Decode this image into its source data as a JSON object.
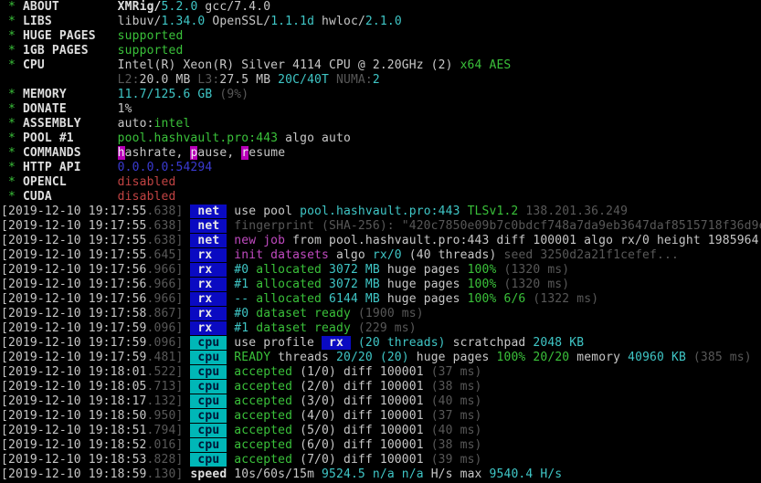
{
  "palette": {
    "background": "#000000",
    "foreground": "#c7c7c7",
    "green": "#3ac13a",
    "cyan": "#3fc6c6",
    "magenta": "#c04ac0",
    "gray": "#585858",
    "blue": "#3a3ad1",
    "red": "#c24343",
    "tag_net_bg": "#0a0ac2",
    "tag_cpu_bg": "#00b7b7",
    "command_hotkey_bg": "#b800b8"
  },
  "terminal": {
    "app": "XMRig miner console output",
    "lines": [
      {
        "name": "info-line-about",
        "seg": [
          [
            "g",
            " * "
          ],
          [
            "wb",
            "ABOUT"
          ],
          [
            "w",
            "        "
          ],
          [
            "wb",
            "XMRig/"
          ],
          [
            "c",
            "5.2.0"
          ],
          [
            "w",
            " gcc/7.4.0"
          ]
        ]
      },
      {
        "name": "info-line-libs",
        "seg": [
          [
            "g",
            " * "
          ],
          [
            "wb",
            "LIBS"
          ],
          [
            "w",
            "         "
          ],
          [
            "w",
            "libuv/"
          ],
          [
            "c",
            "1.34.0"
          ],
          [
            "w",
            " OpenSSL/"
          ],
          [
            "c",
            "1.1.1d"
          ],
          [
            "w",
            " hwloc/"
          ],
          [
            "c",
            "2.1.0"
          ]
        ]
      },
      {
        "name": "info-line-huge-pages",
        "seg": [
          [
            "g",
            " * "
          ],
          [
            "wb",
            "HUGE PAGES"
          ],
          [
            "w",
            "   "
          ],
          [
            "g",
            "supported"
          ]
        ]
      },
      {
        "name": "info-line-1gb-pages",
        "seg": [
          [
            "g",
            " * "
          ],
          [
            "wb",
            "1GB PAGES"
          ],
          [
            "w",
            "    "
          ],
          [
            "g",
            "supported"
          ]
        ]
      },
      {
        "name": "info-line-cpu",
        "seg": [
          [
            "g",
            " * "
          ],
          [
            "wb",
            "CPU"
          ],
          [
            "w",
            "          "
          ],
          [
            "w",
            "Intel(R) Xeon(R) Silver 4114 CPU @ 2.20GHz (2) "
          ],
          [
            "g",
            "x64 AES"
          ]
        ]
      },
      {
        "name": "info-line-cpu-cache",
        "seg": [
          [
            "w",
            "                "
          ],
          [
            "gy",
            "L2:"
          ],
          [
            "w",
            "20.0 MB "
          ],
          [
            "gy",
            "L3:"
          ],
          [
            "w",
            "27.5 MB "
          ],
          [
            "c",
            "20C/40T "
          ],
          [
            "gy",
            "NUMA:"
          ],
          [
            "c",
            "2"
          ]
        ]
      },
      {
        "name": "info-line-memory",
        "seg": [
          [
            "g",
            " * "
          ],
          [
            "wb",
            "MEMORY"
          ],
          [
            "w",
            "       "
          ],
          [
            "c",
            "11.7/125.6 GB "
          ],
          [
            "gy",
            "(9%)"
          ]
        ]
      },
      {
        "name": "info-line-donate",
        "seg": [
          [
            "g",
            " * "
          ],
          [
            "wb",
            "DONATE"
          ],
          [
            "w",
            "       "
          ],
          [
            "w",
            "1%"
          ]
        ]
      },
      {
        "name": "info-line-assembly",
        "seg": [
          [
            "g",
            " * "
          ],
          [
            "wb",
            "ASSEMBLY"
          ],
          [
            "w",
            "     "
          ],
          [
            "w",
            "auto:"
          ],
          [
            "g",
            "intel"
          ]
        ]
      },
      {
        "name": "info-line-pool-1",
        "seg": [
          [
            "g",
            " * "
          ],
          [
            "wb",
            "POOL #1"
          ],
          [
            "w",
            "      "
          ],
          [
            "g",
            "pool.hashvault.pro:443"
          ],
          [
            "w",
            " algo auto"
          ]
        ]
      },
      {
        "name": "info-line-commands",
        "seg": [
          [
            "g",
            " * "
          ],
          [
            "wb",
            "COMMANDS"
          ],
          [
            "w",
            "     "
          ],
          [
            "hot",
            "h"
          ],
          [
            "w",
            "ashrate, "
          ],
          [
            "hot",
            "p"
          ],
          [
            "w",
            "ause, "
          ],
          [
            "hot",
            "r"
          ],
          [
            "w",
            "esume"
          ]
        ]
      },
      {
        "name": "info-line-http-api",
        "seg": [
          [
            "g",
            " * "
          ],
          [
            "wb",
            "HTTP API"
          ],
          [
            "w",
            "     "
          ],
          [
            "bl",
            "0.0.0.0:54294"
          ]
        ]
      },
      {
        "name": "info-line-opencl",
        "seg": [
          [
            "g",
            " * "
          ],
          [
            "wb",
            "OPENCL"
          ],
          [
            "w",
            "       "
          ],
          [
            "r",
            "disabled"
          ]
        ]
      },
      {
        "name": "info-line-cuda",
        "seg": [
          [
            "g",
            " * "
          ],
          [
            "wb",
            "CUDA"
          ],
          [
            "w",
            "         "
          ],
          [
            "r",
            "disabled"
          ]
        ]
      },
      {
        "name": "log-line-net-use-pool",
        "seg": [
          [
            "w",
            "[2019-12-10 19:17:55"
          ],
          [
            "gy",
            ".638] "
          ],
          [
            "tagnet",
            " net "
          ],
          [
            "w",
            " use pool "
          ],
          [
            "c",
            "pool.hashvault.pro:443 "
          ],
          [
            "g",
            "TLSv1.2 "
          ],
          [
            "gy",
            "138.201.36.249"
          ]
        ]
      },
      {
        "name": "log-line-net-fingerprint",
        "seg": [
          [
            "w",
            "[2019-12-10 19:17:55"
          ],
          [
            "gy",
            ".638] "
          ],
          [
            "tagnet",
            " net "
          ],
          [
            "gy",
            " fingerprint (SHA-256): \"420c7850e09b7c0bdcf748a7da9eb3647daf8515718f36d9e"
          ]
        ]
      },
      {
        "name": "log-line-net-new-job",
        "seg": [
          [
            "w",
            "[2019-12-10 19:17:55"
          ],
          [
            "gy",
            ".638] "
          ],
          [
            "tagnet",
            " net "
          ],
          [
            "w",
            " "
          ],
          [
            "m",
            "new job"
          ],
          [
            "w",
            " from pool.hashvault.pro:443 diff 100001 algo rx/0 height 1985964"
          ]
        ]
      },
      {
        "name": "log-line-rx-init-datasets",
        "seg": [
          [
            "w",
            "[2019-12-10 19:17:55"
          ],
          [
            "gy",
            ".645] "
          ],
          [
            "tagnet",
            " rx  "
          ],
          [
            "w",
            " "
          ],
          [
            "m",
            "init datasets"
          ],
          [
            "w",
            " algo "
          ],
          [
            "c",
            "rx/0"
          ],
          [
            "w",
            " (40 threads) "
          ],
          [
            "gy",
            "seed 3250d2a21f1cefef..."
          ]
        ]
      },
      {
        "name": "log-line-rx-allocated-0",
        "seg": [
          [
            "w",
            "[2019-12-10 19:17:56"
          ],
          [
            "gy",
            ".966] "
          ],
          [
            "tagnet",
            " rx  "
          ],
          [
            "w",
            " "
          ],
          [
            "c",
            "#0 "
          ],
          [
            "g",
            "allocated"
          ],
          [
            "c",
            " 3072 MB "
          ],
          [
            "w",
            "huge pages "
          ],
          [
            "g",
            "100% "
          ],
          [
            "gy",
            "(1320 ms)"
          ]
        ]
      },
      {
        "name": "log-line-rx-allocated-1",
        "seg": [
          [
            "w",
            "[2019-12-10 19:17:56"
          ],
          [
            "gy",
            ".966] "
          ],
          [
            "tagnet",
            " rx  "
          ],
          [
            "w",
            " "
          ],
          [
            "c",
            "#1 "
          ],
          [
            "g",
            "allocated"
          ],
          [
            "c",
            " 3072 MB "
          ],
          [
            "w",
            "huge pages "
          ],
          [
            "g",
            "100% "
          ],
          [
            "gy",
            "(1320 ms)"
          ]
        ]
      },
      {
        "name": "log-line-rx-allocated-total",
        "seg": [
          [
            "w",
            "[2019-12-10 19:17:56"
          ],
          [
            "gy",
            ".966] "
          ],
          [
            "tagnet",
            " rx  "
          ],
          [
            "w",
            " "
          ],
          [
            "c",
            "-- "
          ],
          [
            "g",
            "allocated"
          ],
          [
            "c",
            " 6144 MB "
          ],
          [
            "w",
            "huge pages "
          ],
          [
            "g",
            "100% 6/6 "
          ],
          [
            "gy",
            "(1322 ms)"
          ]
        ]
      },
      {
        "name": "log-line-rx-dataset-ready-0",
        "seg": [
          [
            "w",
            "[2019-12-10 19:17:58"
          ],
          [
            "gy",
            ".867] "
          ],
          [
            "tagnet",
            " rx  "
          ],
          [
            "w",
            " "
          ],
          [
            "c",
            "#0 "
          ],
          [
            "g",
            "dataset ready "
          ],
          [
            "gy",
            "(1900 ms)"
          ]
        ]
      },
      {
        "name": "log-line-rx-dataset-ready-1",
        "seg": [
          [
            "w",
            "[2019-12-10 19:17:59"
          ],
          [
            "gy",
            ".096] "
          ],
          [
            "tagnet",
            " rx  "
          ],
          [
            "w",
            " "
          ],
          [
            "c",
            "#1 "
          ],
          [
            "g",
            "dataset ready "
          ],
          [
            "gy",
            "(229 ms)"
          ]
        ]
      },
      {
        "name": "log-line-cpu-use-profile",
        "seg": [
          [
            "w",
            "[2019-12-10 19:17:59"
          ],
          [
            "gy",
            ".096] "
          ],
          [
            "tagcpu",
            " cpu "
          ],
          [
            "w",
            " use profile "
          ],
          [
            "boxrx",
            " rx "
          ],
          [
            "w",
            " "
          ],
          [
            "c",
            "(20 threads) "
          ],
          [
            "w",
            "scratchpad "
          ],
          [
            "c",
            "2048 KB"
          ]
        ]
      },
      {
        "name": "log-line-cpu-ready",
        "seg": [
          [
            "w",
            "[2019-12-10 19:17:59"
          ],
          [
            "gy",
            ".481] "
          ],
          [
            "tagcpu",
            " cpu "
          ],
          [
            "w",
            " "
          ],
          [
            "g",
            "READY"
          ],
          [
            "w",
            " threads "
          ],
          [
            "c",
            "20/20 (20)"
          ],
          [
            "w",
            " huge pages "
          ],
          [
            "g",
            "100% 20/20"
          ],
          [
            "w",
            " memory "
          ],
          [
            "c",
            "40960 KB "
          ],
          [
            "gy",
            "(385 ms)"
          ]
        ]
      },
      {
        "name": "log-line-cpu-accepted-1",
        "seg": [
          [
            "w",
            "[2019-12-10 19:18:01"
          ],
          [
            "gy",
            ".522] "
          ],
          [
            "tagcpu",
            " cpu "
          ],
          [
            "w",
            " "
          ],
          [
            "g",
            "accepted"
          ],
          [
            "w",
            " (1/0) diff 100001 "
          ],
          [
            "gy",
            "(37 ms)"
          ]
        ]
      },
      {
        "name": "log-line-cpu-accepted-2",
        "seg": [
          [
            "w",
            "[2019-12-10 19:18:05"
          ],
          [
            "gy",
            ".713] "
          ],
          [
            "tagcpu",
            " cpu "
          ],
          [
            "w",
            " "
          ],
          [
            "g",
            "accepted"
          ],
          [
            "w",
            " (2/0) diff 100001 "
          ],
          [
            "gy",
            "(38 ms)"
          ]
        ]
      },
      {
        "name": "log-line-cpu-accepted-3",
        "seg": [
          [
            "w",
            "[2019-12-10 19:18:17"
          ],
          [
            "gy",
            ".132] "
          ],
          [
            "tagcpu",
            " cpu "
          ],
          [
            "w",
            " "
          ],
          [
            "g",
            "accepted"
          ],
          [
            "w",
            " (3/0) diff 100001 "
          ],
          [
            "gy",
            "(40 ms)"
          ]
        ]
      },
      {
        "name": "log-line-cpu-accepted-4",
        "seg": [
          [
            "w",
            "[2019-12-10 19:18:50"
          ],
          [
            "gy",
            ".950] "
          ],
          [
            "tagcpu",
            " cpu "
          ],
          [
            "w",
            " "
          ],
          [
            "g",
            "accepted"
          ],
          [
            "w",
            " (4/0) diff 100001 "
          ],
          [
            "gy",
            "(37 ms)"
          ]
        ]
      },
      {
        "name": "log-line-cpu-accepted-5",
        "seg": [
          [
            "w",
            "[2019-12-10 19:18:51"
          ],
          [
            "gy",
            ".794] "
          ],
          [
            "tagcpu",
            " cpu "
          ],
          [
            "w",
            " "
          ],
          [
            "g",
            "accepted"
          ],
          [
            "w",
            " (5/0) diff 100001 "
          ],
          [
            "gy",
            "(40 ms)"
          ]
        ]
      },
      {
        "name": "log-line-cpu-accepted-6",
        "seg": [
          [
            "w",
            "[2019-12-10 19:18:52"
          ],
          [
            "gy",
            ".016] "
          ],
          [
            "tagcpu",
            " cpu "
          ],
          [
            "w",
            " "
          ],
          [
            "g",
            "accepted"
          ],
          [
            "w",
            " (6/0) diff 100001 "
          ],
          [
            "gy",
            "(38 ms)"
          ]
        ]
      },
      {
        "name": "log-line-cpu-accepted-7",
        "seg": [
          [
            "w",
            "[2019-12-10 19:18:53"
          ],
          [
            "gy",
            ".828] "
          ],
          [
            "tagcpu",
            " cpu "
          ],
          [
            "w",
            " "
          ],
          [
            "g",
            "accepted"
          ],
          [
            "w",
            " (7/0) diff 100001 "
          ],
          [
            "gy",
            "(39 ms)"
          ]
        ]
      },
      {
        "name": "log-line-speed",
        "seg": [
          [
            "w",
            "[2019-12-10 19:18:59"
          ],
          [
            "gy",
            ".130] "
          ],
          [
            "wb",
            "speed "
          ],
          [
            "w",
            "10s/60s/15m "
          ],
          [
            "c",
            "9524.5 n/a n/a "
          ],
          [
            "w",
            "H/s max "
          ],
          [
            "c",
            "9540.4 H/s"
          ]
        ]
      }
    ]
  }
}
